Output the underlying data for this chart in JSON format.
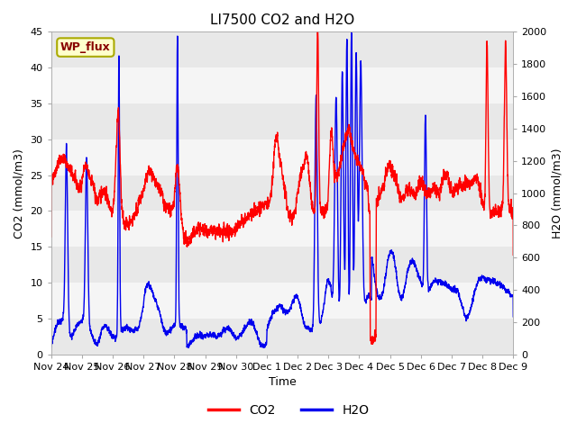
{
  "title": "LI7500 CO2 and H2O",
  "xlabel": "Time",
  "ylabel_left": "CO2 (mmol/m3)",
  "ylabel_right": "H2O (mmol/m3)",
  "ylim_left": [
    0,
    45
  ],
  "ylim_right": [
    0,
    2000
  ],
  "yticks_left": [
    0,
    5,
    10,
    15,
    20,
    25,
    30,
    35,
    40,
    45
  ],
  "yticks_right": [
    0,
    200,
    400,
    600,
    800,
    1000,
    1200,
    1400,
    1600,
    1800,
    2000
  ],
  "xtick_labels": [
    "Nov 24",
    "Nov 25",
    "Nov 26",
    "Nov 27",
    "Nov 28",
    "Nov 29",
    "Nov 30",
    "Dec 1",
    "Dec 2",
    "Dec 3",
    "Dec 4",
    "Dec 5",
    "Dec 6",
    "Dec 7",
    "Dec 8",
    "Dec 9"
  ],
  "site_label": "WP_flux",
  "co2_color": "#FF0000",
  "h2o_color": "#0000EE",
  "band_colors": [
    "#e8e8e8",
    "#f8f8f8"
  ],
  "background_color": "#ffffff",
  "title_fontsize": 11,
  "axis_label_fontsize": 9,
  "tick_fontsize": 8,
  "legend_fontsize": 10,
  "line_width": 1.0,
  "num_days": 16
}
